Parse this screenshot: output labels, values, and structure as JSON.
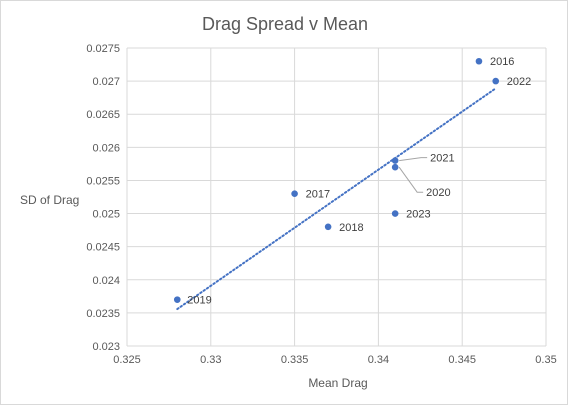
{
  "chart_data": {
    "type": "scatter",
    "title": "Drag Spread v Mean",
    "xlabel": "Mean Drag",
    "ylabel": "SD of Drag",
    "xlim": [
      0.325,
      0.35
    ],
    "ylim": [
      0.023,
      0.0275
    ],
    "x_ticks": [
      "0.325",
      "0.33",
      "0.335",
      "0.34",
      "0.345",
      "0.35"
    ],
    "y_ticks": [
      "0.023",
      "0.0235",
      "0.024",
      "0.0245",
      "0.025",
      "0.0255",
      "0.026",
      "0.0265",
      "0.027",
      "0.0275"
    ],
    "grid": true,
    "legend": "none",
    "marker_color": "#4472c4",
    "trendline": {
      "type": "linear",
      "style": "dotted",
      "color": "#4472c4"
    },
    "points": [
      {
        "label": "2016",
        "x": 0.346,
        "y": 0.0273
      },
      {
        "label": "2017",
        "x": 0.335,
        "y": 0.0253
      },
      {
        "label": "2018",
        "x": 0.337,
        "y": 0.0248
      },
      {
        "label": "2019",
        "x": 0.328,
        "y": 0.0237
      },
      {
        "label": "2020",
        "x": 0.341,
        "y": 0.0257
      },
      {
        "label": "2021",
        "x": 0.341,
        "y": 0.0258
      },
      {
        "label": "2022",
        "x": 0.347,
        "y": 0.027
      },
      {
        "label": "2023",
        "x": 0.341,
        "y": 0.025
      }
    ]
  }
}
